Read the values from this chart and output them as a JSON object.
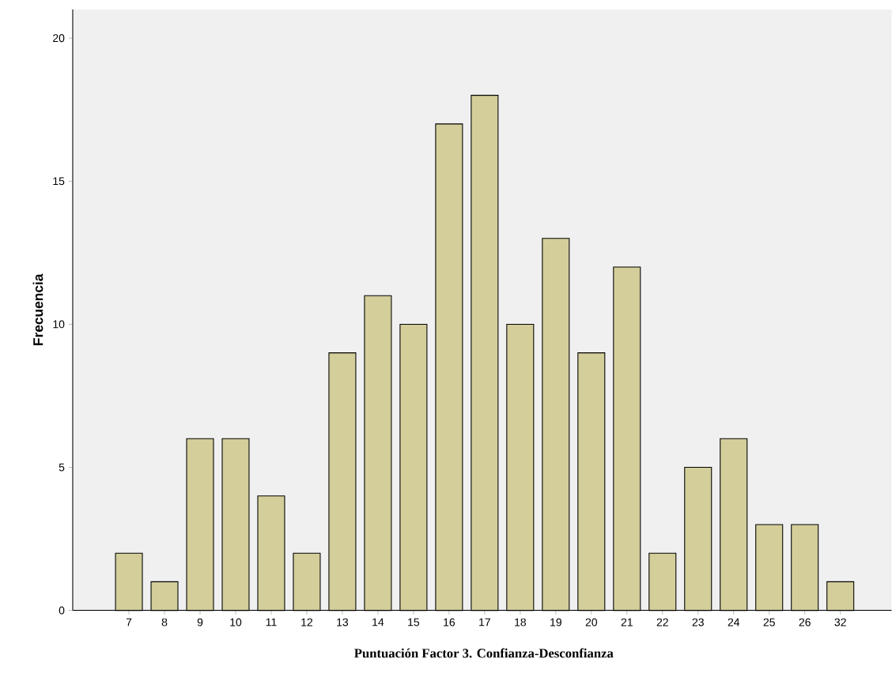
{
  "chart_data": {
    "type": "bar",
    "xlabel": "Puntuación Factor 3. Confianza-Desconfianza",
    "ylabel": "Frecuencia",
    "categories": [
      "7",
      "8",
      "9",
      "10",
      "11",
      "12",
      "13",
      "14",
      "15",
      "16",
      "17",
      "18",
      "19",
      "20",
      "21",
      "22",
      "23",
      "24",
      "25",
      "26",
      "32"
    ],
    "values": [
      2,
      1,
      6,
      6,
      4,
      2,
      9,
      11,
      10,
      17,
      18,
      10,
      13,
      9,
      12,
      2,
      5,
      6,
      3,
      3,
      1
    ],
    "color": "#d3ce9a",
    "ylim": [
      0,
      21
    ],
    "yticks": [
      0,
      5,
      10,
      15,
      20
    ]
  }
}
